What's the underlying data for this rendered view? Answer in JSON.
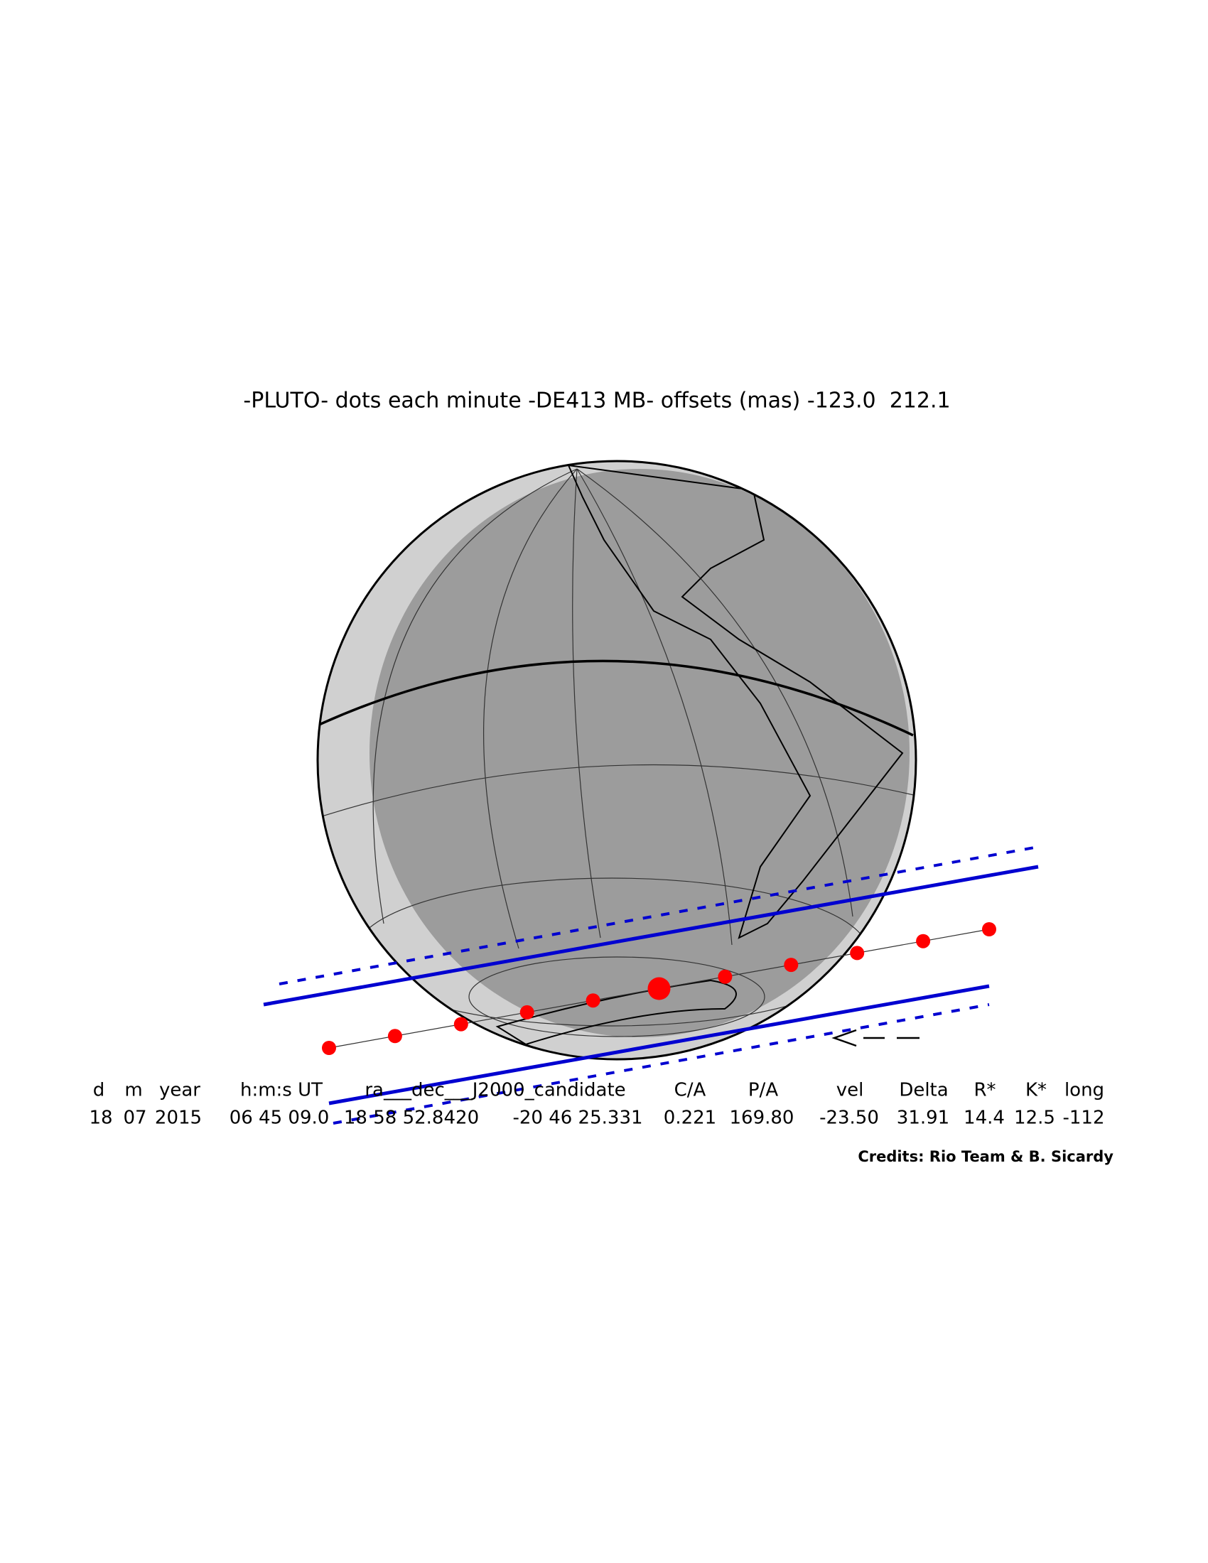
{
  "title": "-PLUTO- dots each minute -DE413 MB- offsets (mas) -123.0  212.1",
  "table": {
    "headers": [
      "d",
      "m",
      "year",
      "h:m:s UT",
      "ra___dec___J2000_candidate",
      "C/A",
      "P/A",
      "vel",
      "Delta",
      "R*",
      "K*",
      "long"
    ],
    "values": [
      "18",
      "07",
      "2015",
      "06 45 09.0",
      "18 58 52.8420",
      "-20 46 25.331",
      "0.221",
      "169.80",
      "-23.50",
      "31.91",
      "14.4",
      "12.5",
      "-112"
    ]
  },
  "credits": "Credits: Rio Team & B. Sicardy"
}
